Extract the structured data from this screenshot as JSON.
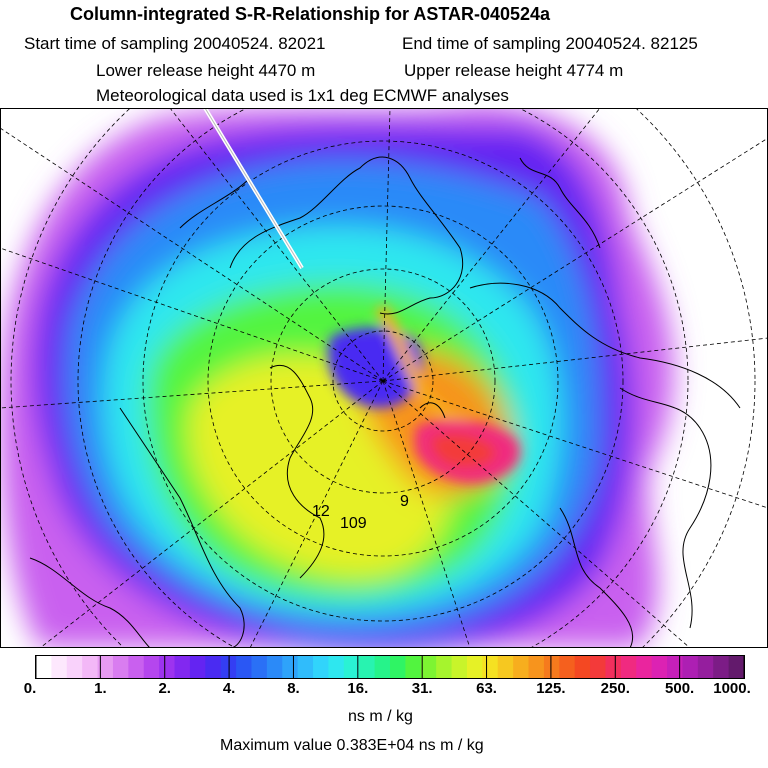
{
  "header": {
    "title": "Column-integrated S-R-Relationship for ASTAR-040524a",
    "start_label": "Start time of sampling 20040524. 82021",
    "end_label": "End time of sampling 20040524. 82125",
    "lower_label": "Lower release height 4470 m",
    "upper_label": "Upper release height 4774 m",
    "met_label": "Meteorological data used is 1x1 deg ECMWF analyses"
  },
  "map": {
    "contour_labels": [
      "12",
      "109",
      "9"
    ]
  },
  "colorbar": {
    "colors": [
      "#ffffff",
      "#fde8fd",
      "#f9d2fb",
      "#f3b8f7",
      "#e79bf2",
      "#d97df0",
      "#c960ef",
      "#b546ee",
      "#9d33ef",
      "#8228f0",
      "#6424f2",
      "#4a2bf2",
      "#343ef3",
      "#2a57f4",
      "#2a70f6",
      "#2b8af8",
      "#2ea3fa",
      "#30bcfb",
      "#31d4fb",
      "#2ee7ef",
      "#2af2d4",
      "#28f3b0",
      "#26f38a",
      "#2ff464",
      "#52f43f",
      "#7df432",
      "#a6f42d",
      "#c8f42a",
      "#e6f126",
      "#f5e122",
      "#f6c820",
      "#f7ae1e",
      "#f7941d",
      "#f67a1d",
      "#f5601e",
      "#f44822",
      "#f33a3a",
      "#f22f5d",
      "#f02a80",
      "#ea259e",
      "#dc22b3",
      "#c620b9",
      "#ad1fb3",
      "#951e9e",
      "#7c1c86",
      "#631a6c"
    ],
    "ticks": [
      "0.",
      "1.",
      "2.",
      "4.",
      "8.",
      "16.",
      "31.",
      "63.",
      "125.",
      "250.",
      "500.",
      "1000."
    ],
    "unit": "ns m / kg",
    "max_label": "Maximum value  0.383E+04 ns m / kg"
  }
}
